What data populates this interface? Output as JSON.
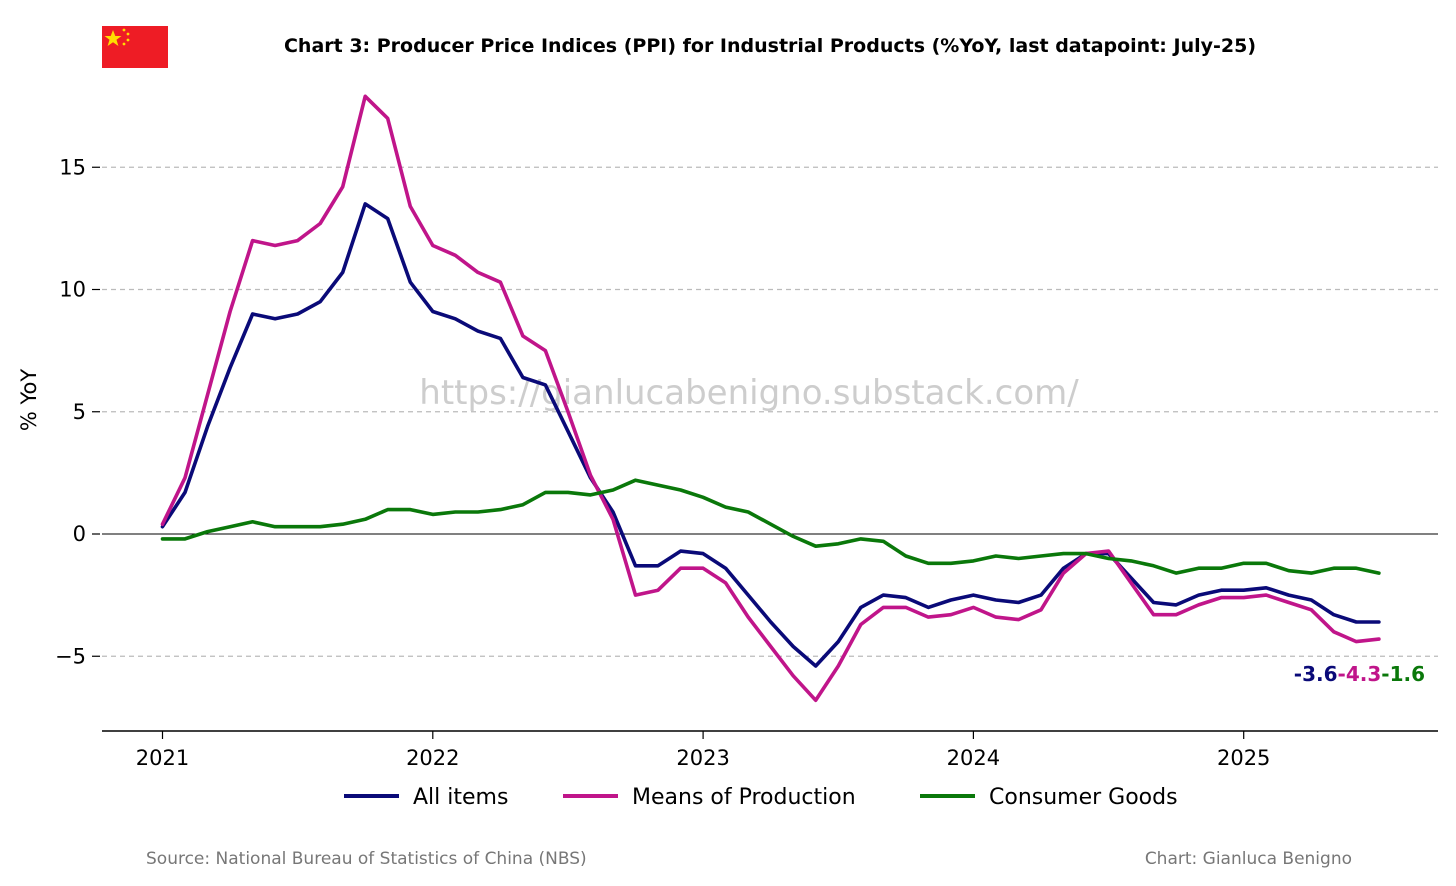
{
  "header": {
    "title": "Chart 3: Producer Price Indices (PPI) for Industrial Products (%YoY, last datapoint: July-25)",
    "flag_icon": "china-flag-icon"
  },
  "watermark": "https://gianlucabenigno.substack.com/",
  "footer": {
    "source": "Source: National Bureau of Statistics of China (NBS)",
    "credit": "Chart: Gianluca Benigno"
  },
  "colors": {
    "all_items": "#0a0a78",
    "means_of_production": "#c0158a",
    "consumer_goods": "#0a780a",
    "grid": "#bbbbbb",
    "flag_red": "#ee1c25",
    "flag_star": "#ffde00"
  },
  "chart_data": {
    "type": "line",
    "title": "Chart 3: Producer Price Indices (PPI) for Industrial Products (%YoY, last datapoint: July-25)",
    "xlabel": "",
    "ylabel": "% YoY",
    "ylim": [
      -8,
      18
    ],
    "xlim": [
      2020.78,
      2025.72
    ],
    "yticks": [
      -5,
      0,
      5,
      10,
      15
    ],
    "ytick_labels": [
      "−5",
      "0",
      "5",
      "10",
      "15"
    ],
    "xticks": [
      2021,
      2022,
      2023,
      2024,
      2025
    ],
    "xtick_labels": [
      "2021",
      "2022",
      "2023",
      "2024",
      "2025"
    ],
    "grid": "horizontal dashed",
    "legend": "bottom-center",
    "start": "2021-01",
    "series": [
      {
        "name": "All items",
        "color_key": "all_items",
        "values": [
          0.3,
          1.7,
          4.4,
          6.8,
          9.0,
          8.8,
          9.0,
          9.5,
          10.7,
          13.5,
          12.9,
          10.3,
          9.1,
          8.8,
          8.3,
          8.0,
          6.4,
          6.1,
          4.2,
          2.3,
          0.9,
          -1.3,
          -1.3,
          -0.7,
          -0.8,
          -1.4,
          -2.5,
          -3.6,
          -4.6,
          -5.4,
          -4.4,
          -3.0,
          -2.5,
          -2.6,
          -3.0,
          -2.7,
          -2.5,
          -2.7,
          -2.8,
          -2.5,
          -1.4,
          -0.8,
          -0.8,
          -1.8,
          -2.8,
          -2.9,
          -2.5,
          -2.3,
          -2.3,
          -2.2,
          -2.5,
          -2.7,
          -3.3,
          -3.6,
          -3.6
        ],
        "last_label": "-3.6"
      },
      {
        "name": "Means of Production",
        "color_key": "means_of_production",
        "values": [
          0.4,
          2.3,
          5.7,
          9.1,
          12.0,
          11.8,
          12.0,
          12.7,
          14.2,
          17.9,
          17.0,
          13.4,
          11.8,
          11.4,
          10.7,
          10.3,
          8.1,
          7.5,
          5.0,
          2.4,
          0.6,
          -2.5,
          -2.3,
          -1.4,
          -1.4,
          -2.0,
          -3.4,
          -4.6,
          -5.8,
          -6.8,
          -5.4,
          -3.7,
          -3.0,
          -3.0,
          -3.4,
          -3.3,
          -3.0,
          -3.4,
          -3.5,
          -3.1,
          -1.6,
          -0.8,
          -0.7,
          -2.0,
          -3.3,
          -3.3,
          -2.9,
          -2.6,
          -2.6,
          -2.5,
          -2.8,
          -3.1,
          -4.0,
          -4.4,
          -4.3
        ],
        "last_label": "-4.3"
      },
      {
        "name": "Consumer Goods",
        "color_key": "consumer_goods",
        "values": [
          -0.2,
          -0.2,
          0.1,
          0.3,
          0.5,
          0.3,
          0.3,
          0.3,
          0.4,
          0.6,
          1.0,
          1.0,
          0.8,
          0.9,
          0.9,
          1.0,
          1.2,
          1.7,
          1.7,
          1.6,
          1.8,
          2.2,
          2.0,
          1.8,
          1.5,
          1.1,
          0.9,
          0.4,
          -0.1,
          -0.5,
          -0.4,
          -0.2,
          -0.3,
          -0.9,
          -1.2,
          -1.2,
          -1.1,
          -0.9,
          -1.0,
          -0.9,
          -0.8,
          -0.8,
          -1.0,
          -1.1,
          -1.3,
          -1.6,
          -1.4,
          -1.4,
          -1.2,
          -1.2,
          -1.5,
          -1.6,
          -1.4,
          -1.4,
          -1.6
        ],
        "last_label": "-1.6"
      }
    ]
  }
}
